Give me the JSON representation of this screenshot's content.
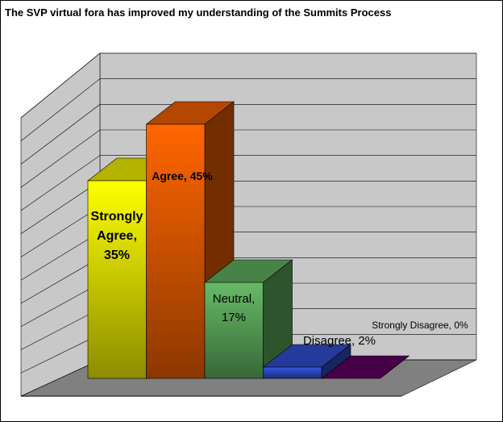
{
  "chart_data": {
    "type": "bar3d",
    "title": "The SVP virtual fora has improved my understanding of the Summits Process",
    "values": [
      35,
      45,
      17,
      2,
      0
    ],
    "value_labels": [
      "Strongly Agree, 35%",
      "Agree, 45%",
      "Neutral, 17%",
      "Disagree, 2%",
      "Strongly Disagree, 0%"
    ],
    "colors": [
      "#ffff00",
      "#ff6600",
      "#66bb66",
      "#3355dd",
      "#660066"
    ],
    "ylim": [
      0,
      60
    ],
    "yticks": [
      0,
      5,
      10,
      15,
      20,
      25,
      30,
      35,
      40,
      45,
      50,
      55,
      60
    ],
    "grid": true
  }
}
